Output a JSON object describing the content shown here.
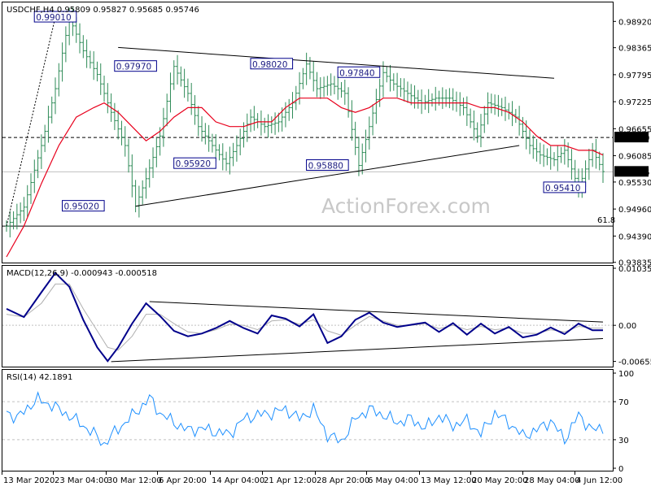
{
  "colors": {
    "background": "#ffffff",
    "price_bars": "#2e8b57",
    "sma": "#e8001c",
    "macd_line": "#00008b",
    "signal_line": "#b0b0b0",
    "rsi_line": "#1e90ff",
    "label_border": "#00008b",
    "grid": "#c0c0c0"
  },
  "watermark": "ActionForex.com",
  "chart_data": [
    {
      "type": "ohlc",
      "panel": "price",
      "header": "USDCHF,H4  0.95809 0.95827 0.95685 0.95746",
      "ylim": [
        0.9383,
        0.9932
      ],
      "y_ticks": [
        "0.98920",
        "0.98365",
        "0.97795",
        "0.97225",
        "0.96655",
        "0.96085",
        "0.95530",
        "0.94960",
        "0.94390",
        "0.93835"
      ],
      "last_price": "0.95746",
      "marker_price": "0.96470",
      "fib_label": "61.8",
      "fib_level": 0.946,
      "x_ticks": [
        "13 Mar 2020",
        "23 Mar 04:00",
        "30 Mar 12:00",
        "6 Apr 20:00",
        "14 Apr 04:00",
        "21 Apr 12:00",
        "28 Apr 20:00",
        "6 May 04:00",
        "13 May 12:00",
        "20 May 20:00",
        "28 May 04:00",
        "4 Jun 12:00"
      ],
      "close_path": [
        [
          0,
          0.946
        ],
        [
          5,
          0.95
        ],
        [
          10,
          0.963
        ],
        [
          14,
          0.975
        ],
        [
          18,
          0.99
        ],
        [
          22,
          0.983
        ],
        [
          26,
          0.978
        ],
        [
          30,
          0.97
        ],
        [
          34,
          0.963
        ],
        [
          37,
          0.9502
        ],
        [
          40,
          0.956
        ],
        [
          44,
          0.965
        ],
        [
          48,
          0.9797
        ],
        [
          52,
          0.974
        ],
        [
          55,
          0.967
        ],
        [
          59,
          0.963
        ],
        [
          63,
          0.9592
        ],
        [
          66,
          0.963
        ],
        [
          70,
          0.969
        ],
        [
          74,
          0.967
        ],
        [
          78,
          0.968
        ],
        [
          82,
          0.972
        ],
        [
          86,
          0.9802
        ],
        [
          89,
          0.975
        ],
        [
          93,
          0.976
        ],
        [
          97,
          0.974
        ],
        [
          101,
          0.9588
        ],
        [
          104,
          0.967
        ],
        [
          108,
          0.9784
        ],
        [
          111,
          0.976
        ],
        [
          115,
          0.974
        ],
        [
          119,
          0.972
        ],
        [
          123,
          0.973
        ],
        [
          127,
          0.973
        ],
        [
          131,
          0.971
        ],
        [
          135,
          0.965
        ],
        [
          138,
          0.972
        ],
        [
          142,
          0.971
        ],
        [
          146,
          0.969
        ],
        [
          150,
          0.963
        ],
        [
          153,
          0.961
        ],
        [
          157,
          0.96
        ],
        [
          160,
          0.962
        ],
        [
          164,
          0.9541
        ],
        [
          168,
          0.962
        ],
        [
          171,
          0.9575
        ]
      ],
      "sma_path": [
        [
          0,
          0.9395
        ],
        [
          5,
          0.946
        ],
        [
          10,
          0.955
        ],
        [
          15,
          0.963
        ],
        [
          20,
          0.969
        ],
        [
          25,
          0.971
        ],
        [
          28,
          0.972
        ],
        [
          32,
          0.97
        ],
        [
          36,
          0.967
        ],
        [
          40,
          0.964
        ],
        [
          44,
          0.966
        ],
        [
          48,
          0.969
        ],
        [
          52,
          0.971
        ],
        [
          56,
          0.971
        ],
        [
          60,
          0.968
        ],
        [
          64,
          0.967
        ],
        [
          68,
          0.967
        ],
        [
          72,
          0.968
        ],
        [
          76,
          0.968
        ],
        [
          80,
          0.971
        ],
        [
          84,
          0.973
        ],
        [
          88,
          0.973
        ],
        [
          92,
          0.973
        ],
        [
          96,
          0.971
        ],
        [
          100,
          0.97
        ],
        [
          104,
          0.971
        ],
        [
          108,
          0.973
        ],
        [
          112,
          0.973
        ],
        [
          116,
          0.972
        ],
        [
          120,
          0.972
        ],
        [
          124,
          0.972
        ],
        [
          128,
          0.972
        ],
        [
          132,
          0.972
        ],
        [
          136,
          0.971
        ],
        [
          140,
          0.971
        ],
        [
          144,
          0.97
        ],
        [
          148,
          0.968
        ],
        [
          152,
          0.965
        ],
        [
          156,
          0.963
        ],
        [
          160,
          0.963
        ],
        [
          164,
          0.962
        ],
        [
          168,
          0.962
        ],
        [
          171,
          0.961
        ]
      ],
      "annotations": [
        {
          "text": "0.99010",
          "x": 14,
          "y": 0.9901
        },
        {
          "text": "0.97970",
          "x": 37,
          "y": 0.9797
        },
        {
          "text": "0.98020",
          "x": 76,
          "y": 0.9802
        },
        {
          "text": "0.97840",
          "x": 101,
          "y": 0.9784
        },
        {
          "text": "0.95920",
          "x": 54,
          "y": 0.9592
        },
        {
          "text": "0.95880",
          "x": 92,
          "y": 0.9588
        },
        {
          "text": "0.95020",
          "x": 22,
          "y": 0.9502
        },
        {
          "text": "0.95410",
          "x": 160,
          "y": 0.9541
        }
      ],
      "trendlines": [
        {
          "from": [
            37,
            0.9502
          ],
          "to": [
            147,
            0.963
          ]
        },
        {
          "from": [
            32,
            0.9837
          ],
          "to": [
            157,
            0.9772
          ]
        }
      ]
    },
    {
      "type": "line",
      "panel": "macd",
      "header": "MACD(12,26,9) -0.000943 -0.000518",
      "ylim": [
        -0.0075,
        0.0108
      ],
      "y_ticks": [
        "0.010358",
        "0.00",
        "-0.006553"
      ],
      "macd_path": [
        [
          0,
          0.003
        ],
        [
          5,
          0.0015
        ],
        [
          10,
          0.006
        ],
        [
          14,
          0.0095
        ],
        [
          18,
          0.007
        ],
        [
          22,
          0.001
        ],
        [
          26,
          -0.004
        ],
        [
          29,
          -0.0065
        ],
        [
          32,
          -0.004
        ],
        [
          36,
          0.0003
        ],
        [
          40,
          0.004
        ],
        [
          44,
          0.0017
        ],
        [
          48,
          -0.001
        ],
        [
          52,
          -0.002
        ],
        [
          56,
          -0.0015
        ],
        [
          60,
          -0.0005
        ],
        [
          64,
          0.0008
        ],
        [
          68,
          -0.0005
        ],
        [
          72,
          -0.0015
        ],
        [
          76,
          0.0018
        ],
        [
          80,
          0.0012
        ],
        [
          84,
          -0.0002
        ],
        [
          88,
          0.002
        ],
        [
          92,
          -0.0032
        ],
        [
          96,
          -0.002
        ],
        [
          100,
          0.001
        ],
        [
          104,
          0.0023
        ],
        [
          108,
          0.0005
        ],
        [
          112,
          -0.0003
        ],
        [
          116,
          0.0001
        ],
        [
          120,
          0.0005
        ],
        [
          124,
          -0.0012
        ],
        [
          128,
          0.0004
        ],
        [
          132,
          -0.0017
        ],
        [
          136,
          0.0003
        ],
        [
          140,
          -0.0015
        ],
        [
          144,
          -0.0003
        ],
        [
          148,
          -0.0022
        ],
        [
          152,
          -0.0017
        ],
        [
          156,
          -0.0004
        ],
        [
          160,
          -0.0016
        ],
        [
          164,
          0.0003
        ],
        [
          168,
          -0.0009
        ],
        [
          171,
          -0.0009
        ]
      ],
      "signal_path": [
        [
          0,
          0.002
        ],
        [
          5,
          0.0015
        ],
        [
          10,
          0.004
        ],
        [
          14,
          0.0075
        ],
        [
          18,
          0.0075
        ],
        [
          22,
          0.003
        ],
        [
          26,
          -0.001
        ],
        [
          29,
          -0.004
        ],
        [
          32,
          -0.0045
        ],
        [
          36,
          -0.002
        ],
        [
          40,
          0.002
        ],
        [
          44,
          0.002
        ],
        [
          48,
          0.0003
        ],
        [
          52,
          -0.0012
        ],
        [
          56,
          -0.0015
        ],
        [
          60,
          -0.0008
        ],
        [
          64,
          0.0002
        ],
        [
          68,
          0
        ],
        [
          72,
          -0.0008
        ],
        [
          76,
          0.0008
        ],
        [
          80,
          0.001
        ],
        [
          84,
          0.0002
        ],
        [
          88,
          0.001
        ],
        [
          92,
          -0.001
        ],
        [
          96,
          -0.0018
        ],
        [
          100,
          0
        ],
        [
          104,
          0.0016
        ],
        [
          108,
          0.0008
        ],
        [
          112,
          0
        ],
        [
          116,
          0
        ],
        [
          120,
          0.0003
        ],
        [
          124,
          -0.0006
        ],
        [
          128,
          0
        ],
        [
          132,
          -0.0008
        ],
        [
          136,
          -0.0002
        ],
        [
          140,
          -0.0008
        ],
        [
          144,
          -0.0005
        ],
        [
          148,
          -0.0014
        ],
        [
          152,
          -0.0015
        ],
        [
          156,
          -0.0008
        ],
        [
          160,
          -0.0012
        ],
        [
          164,
          -0.0002
        ],
        [
          168,
          -0.0005
        ],
        [
          171,
          -0.0005
        ]
      ],
      "trendlines": [
        {
          "from": [
            41,
            0.0043
          ],
          "to": [
            171,
            0.0006
          ]
        },
        {
          "from": [
            30,
            -0.0066
          ],
          "to": [
            171,
            -0.0024
          ]
        }
      ]
    },
    {
      "type": "line",
      "panel": "rsi",
      "header": "RSI(14) 42.1891",
      "ylim": [
        0,
        100
      ],
      "y_ticks": [
        "100",
        "70",
        "30",
        "0"
      ],
      "levels": [
        70,
        30
      ],
      "rsi_path": [
        [
          0,
          60
        ],
        [
          3,
          52
        ],
        [
          6,
          64
        ],
        [
          9,
          72
        ],
        [
          12,
          68
        ],
        [
          15,
          62
        ],
        [
          18,
          55
        ],
        [
          22,
          45
        ],
        [
          26,
          33
        ],
        [
          28,
          25
        ],
        [
          31,
          38
        ],
        [
          34,
          48
        ],
        [
          38,
          62
        ],
        [
          41,
          74
        ],
        [
          44,
          58
        ],
        [
          48,
          48
        ],
        [
          52,
          40
        ],
        [
          56,
          42
        ],
        [
          60,
          38
        ],
        [
          64,
          36
        ],
        [
          68,
          52
        ],
        [
          72,
          56
        ],
        [
          76,
          58
        ],
        [
          80,
          62
        ],
        [
          84,
          52
        ],
        [
          88,
          62
        ],
        [
          92,
          35
        ],
        [
          96,
          28
        ],
        [
          100,
          52
        ],
        [
          104,
          62
        ],
        [
          108,
          56
        ],
        [
          112,
          48
        ],
        [
          116,
          52
        ],
        [
          120,
          42
        ],
        [
          124,
          55
        ],
        [
          128,
          45
        ],
        [
          132,
          50
        ],
        [
          136,
          36
        ],
        [
          140,
          58
        ],
        [
          144,
          48
        ],
        [
          148,
          34
        ],
        [
          152,
          40
        ],
        [
          156,
          50
        ],
        [
          160,
          30
        ],
        [
          164,
          56
        ],
        [
          168,
          40
        ],
        [
          171,
          42
        ]
      ]
    }
  ]
}
